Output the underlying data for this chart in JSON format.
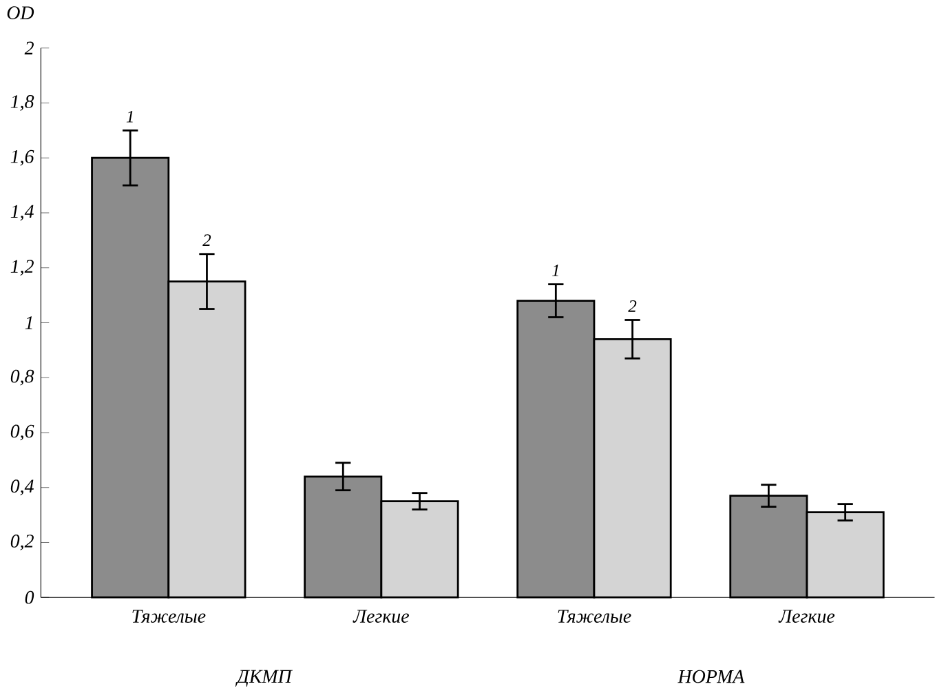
{
  "chart_data": {
    "type": "bar",
    "ylabel": "OD",
    "categories": [
      "Тяжелые",
      "Легкие",
      "Тяжелые",
      "Легкие"
    ],
    "series": [
      {
        "name": "1",
        "color": "#8c8c8c",
        "values": [
          1.6,
          0.44,
          1.08,
          0.37
        ],
        "errors": [
          0.1,
          0.05,
          0.06,
          0.04
        ]
      },
      {
        "name": "2",
        "color": "#d4d4d4",
        "values": [
          1.15,
          0.35,
          0.94,
          0.31
        ],
        "errors": [
          0.1,
          0.03,
          0.07,
          0.03
        ]
      }
    ],
    "annotations": [
      "ДКМП",
      "НОРМА"
    ],
    "ylim": [
      0,
      2
    ],
    "yticks": [
      0,
      {
        "value": 0.2,
        "label": "0,2"
      },
      {
        "value": 0.4,
        "label": "0,4"
      },
      {
        "value": 0.6,
        "label": "0,6"
      },
      {
        "value": 0.8,
        "label": "0,8"
      },
      1,
      {
        "value": 1.2,
        "label": "1,2"
      },
      {
        "value": 1.4,
        "label": "1,4"
      },
      {
        "value": 1.6,
        "label": "1,6"
      },
      {
        "value": 1.8,
        "label": "1,8"
      },
      2
    ],
    "legend": false,
    "grid": false
  }
}
